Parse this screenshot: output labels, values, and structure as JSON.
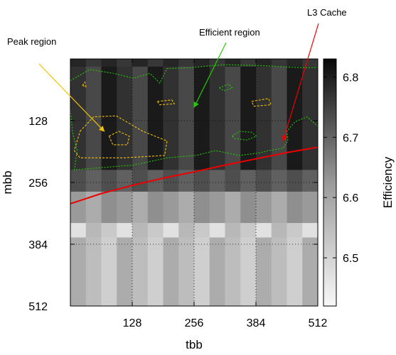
{
  "chart_data": {
    "type": "heatmap",
    "xlabel": "tbb",
    "ylabel": "mbb",
    "x_ticks": [
      128,
      256,
      384,
      512
    ],
    "y_ticks": [
      128,
      256,
      384,
      512
    ],
    "xlim": [
      0,
      512
    ],
    "ylim": [
      0,
      512
    ],
    "y_inverted": true,
    "grid": "dotted",
    "colorbar": {
      "label": "Efficiency",
      "ticks": [
        6.5,
        6.6,
        6.7,
        6.8
      ],
      "range": [
        6.42,
        6.83
      ],
      "palette": "white-to-black"
    },
    "annotations": [
      {
        "text": "Peak region",
        "color": "#f2c200",
        "points_to": {
          "tbb": 70,
          "mbb": 150
        }
      },
      {
        "text": "Efficient region",
        "color": "#22cc00",
        "points_to": {
          "tbb": 256,
          "mbb": 100
        }
      },
      {
        "text": "L3 Cache",
        "color": "#ee0000",
        "points_to": {
          "tbb": 440,
          "mbb": 170
        }
      }
    ],
    "series": [
      {
        "name": "L3 Cache",
        "type": "line",
        "color": "#ee0000",
        "points": [
          [
            0,
            300
          ],
          [
            64,
            279
          ],
          [
            128,
            262
          ],
          [
            192,
            247
          ],
          [
            256,
            234
          ],
          [
            320,
            220
          ],
          [
            384,
            207
          ],
          [
            448,
            194
          ],
          [
            512,
            183
          ]
        ]
      },
      {
        "name": "Peak region",
        "type": "contour",
        "color": "#f2c200",
        "paths": [
          [
            [
              20,
              150
            ],
            [
              48,
              120
            ],
            [
              95,
              118
            ],
            [
              150,
              150
            ],
            [
              200,
              170
            ],
            [
              195,
              200
            ],
            [
              110,
              205
            ],
            [
              20,
              205
            ],
            [
              8,
              190
            ],
            [
              20,
              150
            ]
          ],
          [
            [
              80,
              160
            ],
            [
              100,
              150
            ],
            [
              122,
              160
            ],
            [
              118,
              178
            ],
            [
              88,
              178
            ],
            [
              80,
              160
            ]
          ],
          [
            [
              25,
              55
            ],
            [
              30,
              48
            ],
            [
              32,
              58
            ],
            [
              25,
              55
            ]
          ],
          [
            [
              180,
              88
            ],
            [
              210,
              85
            ],
            [
              215,
              93
            ],
            [
              185,
              95
            ],
            [
              180,
              88
            ]
          ],
          [
            [
              375,
              88
            ],
            [
              410,
              82
            ],
            [
              415,
              95
            ],
            [
              380,
              98
            ],
            [
              375,
              88
            ]
          ]
        ]
      },
      {
        "name": "Efficient region",
        "type": "contour",
        "color": "#22cc00",
        "paths": [
          [
            [
              0,
              45
            ],
            [
              40,
              22
            ],
            [
              90,
              30
            ],
            [
              130,
              40
            ],
            [
              165,
              30
            ],
            [
              185,
              50
            ],
            [
              200,
              20
            ],
            [
              250,
              18
            ],
            [
              280,
              15
            ],
            [
              320,
              12
            ],
            [
              400,
              14
            ],
            [
              470,
              18
            ],
            [
              512,
              18
            ]
          ],
          [
            [
              0,
              100
            ],
            [
              4,
              150
            ],
            [
              14,
              190
            ],
            [
              8,
              230
            ],
            [
              30,
              228
            ],
            [
              130,
              220
            ],
            [
              200,
              205
            ],
            [
              260,
              200
            ],
            [
              300,
              190
            ],
            [
              350,
              200
            ],
            [
              390,
              195
            ],
            [
              410,
              190
            ],
            [
              440,
              185
            ],
            [
              450,
              170
            ],
            [
              448,
              150
            ],
            [
              465,
              130
            ],
            [
              490,
              120
            ],
            [
              512,
              140
            ]
          ],
          [
            [
              335,
              160
            ],
            [
              350,
              150
            ],
            [
              375,
              152
            ],
            [
              385,
              160
            ],
            [
              365,
              168
            ],
            [
              340,
              165
            ],
            [
              335,
              160
            ]
          ],
          [
            [
              308,
              60
            ],
            [
              328,
              52
            ],
            [
              335,
              60
            ],
            [
              318,
              66
            ],
            [
              308,
              60
            ]
          ]
        ]
      }
    ],
    "heatmap_rows": [
      {
        "mbb_range": [
          0,
          16
        ],
        "levels": [
          6.78,
          6.75
        ]
      },
      {
        "mbb_range": [
          16,
          230
        ],
        "levels": [
          6.8,
          6.76,
          6.72
        ]
      },
      {
        "mbb_range": [
          230,
          275
        ],
        "levels": [
          6.71,
          6.68
        ]
      },
      {
        "mbb_range": [
          275,
          340
        ],
        "levels": [
          6.58,
          6.55,
          6.6
        ]
      },
      {
        "mbb_range": [
          340,
          370
        ],
        "levels": [
          6.5,
          6.46,
          6.53
        ]
      },
      {
        "mbb_range": [
          370,
          512
        ],
        "levels": [
          6.52,
          6.49,
          6.55
        ]
      }
    ]
  }
}
